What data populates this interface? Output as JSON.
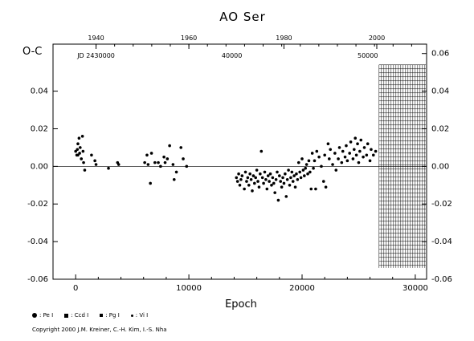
{
  "chart_data": {
    "type": "scatter",
    "title": "AO Ser",
    "ylabel": "O-C",
    "xlabel": "Epoch",
    "xlim": [
      -2000,
      31000
    ],
    "ylim": [
      -0.06,
      0.065
    ],
    "x_ticks": [
      0,
      10000,
      20000,
      30000
    ],
    "x_tick_labels": [
      "0",
      "10000",
      "20000",
      "30000"
    ],
    "y_ticks": [
      -0.06,
      -0.04,
      -0.02,
      0.0,
      0.02,
      0.04
    ],
    "y_tick_labels": [
      "-0.06",
      "-0.04",
      "-0.02",
      "0.00",
      "0.02",
      "0.04"
    ],
    "right_ticks": [
      -0.06,
      -0.04,
      -0.02,
      0.0,
      0.02,
      0.04,
      0.06
    ],
    "right_tick_labels": [
      "-0.06",
      "-0.04",
      "-0.02",
      "0.00",
      "0.02",
      "0.04",
      "0.06"
    ],
    "top_ticks": [
      {
        "x": 1800,
        "label": "1940"
      },
      {
        "x": 10000,
        "label": "1960"
      },
      {
        "x": 18400,
        "label": "1980"
      },
      {
        "x": 26600,
        "label": "2000"
      }
    ],
    "jd_labels": [
      {
        "x": 1800,
        "label": "JD 2430000"
      },
      {
        "x": 13800,
        "label": "40000"
      },
      {
        "x": 25800,
        "label": "50000"
      }
    ],
    "zero_line": true,
    "shaded_region": {
      "x_from": 26800,
      "x_to": 31000,
      "y_from": -0.054,
      "y_to": 0.054
    },
    "legend": [
      {
        "symbol": "big-dot",
        "label": ": Pe I"
      },
      {
        "symbol": "square",
        "label": ": Ccd I"
      },
      {
        "symbol": "small-square",
        "label": ": Pg I"
      },
      {
        "symbol": "small-dot",
        "label": ": Vi I"
      }
    ],
    "points": [
      [
        0,
        0.008
      ],
      [
        100,
        0.006
      ],
      [
        150,
        0.009
      ],
      [
        200,
        0.012
      ],
      [
        300,
        0.015
      ],
      [
        350,
        0.007
      ],
      [
        400,
        0.01
      ],
      [
        500,
        0.004
      ],
      [
        600,
        0.016
      ],
      [
        650,
        0.008
      ],
      [
        700,
        0.002
      ],
      [
        800,
        -0.002
      ],
      [
        200,
        0.006
      ],
      [
        1400,
        0.006
      ],
      [
        1700,
        0.003
      ],
      [
        1800,
        0.001
      ],
      [
        2900,
        -0.001
      ],
      [
        3700,
        0.002
      ],
      [
        3800,
        0.001
      ],
      [
        6100,
        0.002
      ],
      [
        6300,
        0.006
      ],
      [
        6400,
        0.001
      ],
      [
        6600,
        -0.009
      ],
      [
        6700,
        0.007
      ],
      [
        7000,
        0.002
      ],
      [
        7300,
        0.002
      ],
      [
        7500,
        0.0
      ],
      [
        7800,
        0.005
      ],
      [
        7900,
        0.002
      ],
      [
        8100,
        0.004
      ],
      [
        8300,
        0.011
      ],
      [
        8600,
        0.001
      ],
      [
        8700,
        -0.007
      ],
      [
        8900,
        -0.003
      ],
      [
        9300,
        0.01
      ],
      [
        9500,
        0.004
      ],
      [
        9800,
        0.0
      ],
      [
        14200,
        -0.006
      ],
      [
        14300,
        -0.008
      ],
      [
        14400,
        -0.004
      ],
      [
        14500,
        -0.01
      ],
      [
        14600,
        -0.007
      ],
      [
        14700,
        -0.005
      ],
      [
        14900,
        -0.012
      ],
      [
        15000,
        -0.003
      ],
      [
        15100,
        -0.008
      ],
      [
        15200,
        -0.006
      ],
      [
        15300,
        -0.01
      ],
      [
        15400,
        -0.004
      ],
      [
        15500,
        -0.007
      ],
      [
        15600,
        -0.013
      ],
      [
        15700,
        -0.005
      ],
      [
        15800,
        -0.009
      ],
      [
        15900,
        -0.006
      ],
      [
        16000,
        -0.002
      ],
      [
        16100,
        -0.008
      ],
      [
        16200,
        -0.011
      ],
      [
        16300,
        -0.004
      ],
      [
        16400,
        0.008
      ],
      [
        16500,
        -0.006
      ],
      [
        16600,
        -0.009
      ],
      [
        16700,
        -0.003
      ],
      [
        16800,
        -0.007
      ],
      [
        16900,
        -0.012
      ],
      [
        17000,
        -0.005
      ],
      [
        17100,
        -0.008
      ],
      [
        17200,
        -0.004
      ],
      [
        17300,
        -0.01
      ],
      [
        17400,
        -0.006
      ],
      [
        17500,
        -0.009
      ],
      [
        17600,
        -0.014
      ],
      [
        17700,
        -0.007
      ],
      [
        17800,
        -0.003
      ],
      [
        17900,
        -0.018
      ],
      [
        18000,
        -0.005
      ],
      [
        18100,
        -0.008
      ],
      [
        18200,
        -0.011
      ],
      [
        18300,
        -0.006
      ],
      [
        18400,
        -0.009
      ],
      [
        18500,
        -0.004
      ],
      [
        18600,
        -0.016
      ],
      [
        18700,
        -0.007
      ],
      [
        18800,
        -0.002
      ],
      [
        18900,
        -0.01
      ],
      [
        19000,
        -0.006
      ],
      [
        19100,
        -0.003
      ],
      [
        19200,
        -0.008
      ],
      [
        19300,
        -0.005
      ],
      [
        19400,
        -0.011
      ],
      [
        19500,
        -0.004
      ],
      [
        19600,
        -0.007
      ],
      [
        19700,
        0.002
      ],
      [
        19800,
        -0.003
      ],
      [
        19900,
        -0.006
      ],
      [
        20000,
        0.004
      ],
      [
        20100,
        -0.002
      ],
      [
        20200,
        -0.005
      ],
      [
        20300,
        -0.001
      ],
      [
        20400,
        0.001
      ],
      [
        20500,
        -0.004
      ],
      [
        20600,
        0.003
      ],
      [
        20700,
        -0.003
      ],
      [
        20800,
        -0.012
      ],
      [
        20900,
        0.007
      ],
      [
        21000,
        -0.001
      ],
      [
        21100,
        0.003
      ],
      [
        21200,
        -0.012
      ],
      [
        21300,
        0.008
      ],
      [
        21500,
        0.005
      ],
      [
        21700,
        0.0
      ],
      [
        21900,
        -0.008
      ],
      [
        22000,
        0.006
      ],
      [
        22100,
        -0.011
      ],
      [
        22300,
        0.012
      ],
      [
        22400,
        0.004
      ],
      [
        22500,
        0.009
      ],
      [
        22700,
        0.001
      ],
      [
        22900,
        0.007
      ],
      [
        23000,
        -0.002
      ],
      [
        23200,
        0.004
      ],
      [
        23300,
        0.01
      ],
      [
        23500,
        0.002
      ],
      [
        23600,
        0.008
      ],
      [
        23800,
        0.005
      ],
      [
        23900,
        0.011
      ],
      [
        24000,
        0.003
      ],
      [
        24200,
        0.007
      ],
      [
        24300,
        0.013
      ],
      [
        24500,
        0.004
      ],
      [
        24600,
        0.009
      ],
      [
        24700,
        0.015
      ],
      [
        24800,
        0.006
      ],
      [
        24900,
        0.012
      ],
      [
        25000,
        0.002
      ],
      [
        25100,
        0.008
      ],
      [
        25200,
        0.014
      ],
      [
        25400,
        0.005
      ],
      [
        25500,
        0.01
      ],
      [
        25700,
        0.006
      ],
      [
        25800,
        0.012
      ],
      [
        26000,
        0.003
      ],
      [
        26100,
        0.009
      ],
      [
        26300,
        0.006
      ],
      [
        26500,
        0.008
      ]
    ]
  },
  "copyright": "Copyright 2000 J.M. Kreiner, C.-H. Kim, I.-S. Nha"
}
